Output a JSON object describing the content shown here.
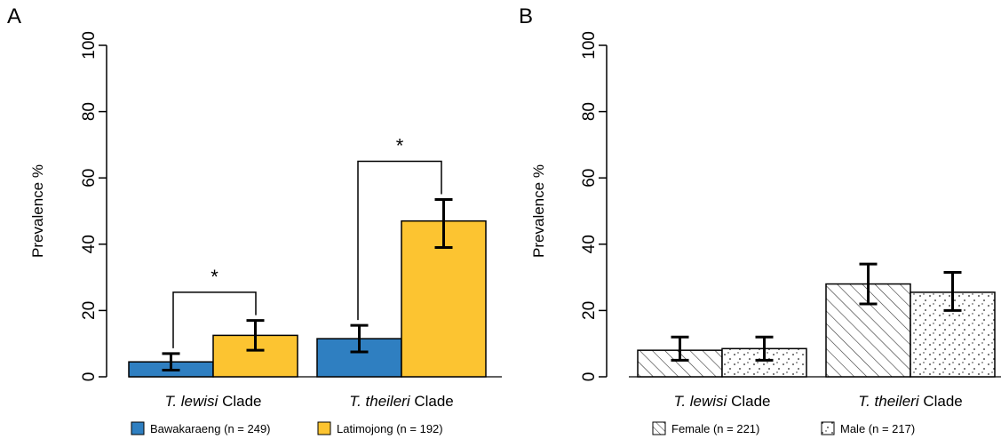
{
  "figure": {
    "panels": [
      "A",
      "B"
    ]
  },
  "chart_data": [
    {
      "panel": "A",
      "type": "bar",
      "categories": [
        {
          "italic": "T. lewisi",
          "rest": " Clade"
        },
        {
          "italic": "T. theileri",
          "rest": " Clade"
        }
      ],
      "series": [
        {
          "name": "Bawakaraeng (n = 249)",
          "color": "#2f7fc1",
          "values": [
            4.5,
            11.5
          ],
          "err_low": [
            2.0,
            7.5
          ],
          "err_high": [
            7.0,
            15.5
          ]
        },
        {
          "name": "Latimojong (n = 192)",
          "color": "#fcc431",
          "values": [
            12.5,
            47.0
          ],
          "err_low": [
            8.0,
            39.0
          ],
          "err_high": [
            17.0,
            53.5
          ]
        }
      ],
      "ylabel": "Prevalence %",
      "ylim": [
        0,
        100
      ],
      "yticks": [
        "0",
        "20",
        "40",
        "60",
        "80",
        "100"
      ],
      "significance": [
        {
          "category_index": 0,
          "label": "*",
          "bracket_y": 25.5
        },
        {
          "category_index": 1,
          "label": "*",
          "bracket_y": 65.0
        }
      ],
      "legend_position": "bottom"
    },
    {
      "panel": "B",
      "type": "bar",
      "categories": [
        {
          "italic": "T. lewisi",
          "rest": " Clade"
        },
        {
          "italic": "T. theileri",
          "rest": " Clade"
        }
      ],
      "series": [
        {
          "name": "Female (n = 221)",
          "pattern": "hatch",
          "values": [
            8.0,
            28.0
          ],
          "err_low": [
            5.0,
            22.0
          ],
          "err_high": [
            12.0,
            34.0
          ]
        },
        {
          "name": "Male (n = 217)",
          "pattern": "dots",
          "values": [
            8.5,
            25.5
          ],
          "err_low": [
            5.0,
            20.0
          ],
          "err_high": [
            12.0,
            31.5
          ]
        }
      ],
      "ylabel": "Prevalence %",
      "ylim": [
        0,
        100
      ],
      "yticks": [
        "0",
        "20",
        "40",
        "60",
        "80",
        "100"
      ],
      "legend_position": "bottom"
    }
  ]
}
